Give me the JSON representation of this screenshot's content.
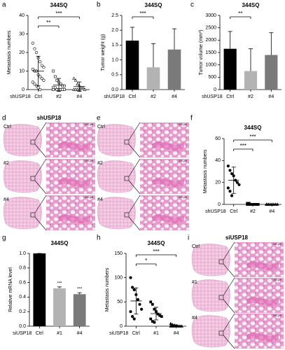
{
  "chart_data": [
    {
      "type": "dotplot",
      "panel": "a",
      "title": "344SQ",
      "ylabel": "Metastasis numbers",
      "xlabel": "shUSP18",
      "categories": [
        "Ctrl",
        "#2",
        "#4"
      ],
      "points": [
        [
          25,
          22,
          20,
          17,
          15,
          13,
          12,
          11,
          10,
          10,
          8,
          7,
          6,
          5,
          4,
          3,
          2,
          1,
          0
        ],
        [
          10,
          7,
          5,
          4,
          3,
          2,
          2,
          1,
          1,
          0,
          0,
          0,
          0,
          0,
          0
        ],
        [
          6,
          5,
          3,
          2,
          1,
          1,
          0,
          0,
          0,
          0,
          0
        ]
      ],
      "means": [
        10,
        2.5,
        1.6
      ],
      "errors": [
        8,
        3.5,
        2.5
      ],
      "markers": [
        "circle",
        "square",
        "triangle"
      ],
      "open_markers": true,
      "color": "#000000",
      "ylim": [
        0,
        40
      ],
      "yticks": [
        0,
        10,
        20,
        30,
        40
      ],
      "brackets": [
        {
          "pair": [
            0,
            1
          ],
          "label": "**"
        },
        {
          "pair": [
            0,
            2
          ],
          "label": "***"
        }
      ]
    },
    {
      "type": "bar",
      "panel": "b",
      "title": "344SQ",
      "ylabel": "Tumor weight (g)",
      "xlabel": "shUSP18",
      "categories": [
        "Ctrl",
        "#2",
        "#4"
      ],
      "values": [
        1.65,
        0.75,
        1.35
      ],
      "errors": [
        0.45,
        0.8,
        0.7
      ],
      "colors": [
        "#000000",
        "#b3b3b3",
        "#7a7a7a"
      ],
      "ylim": [
        0,
        2.5
      ],
      "yticks": [
        {
          "value": 0,
          "label": "0.0"
        },
        0.5,
        {
          "value": 1,
          "label": "1.0"
        },
        1.5,
        {
          "value": 2,
          "label": "2.0"
        },
        2.5
      ],
      "brackets": [
        {
          "pair": [
            0,
            1
          ],
          "label": "***"
        }
      ]
    },
    {
      "type": "bar",
      "panel": "c",
      "title": "344SQ",
      "ylabel": "Tumor volume (mm³)",
      "xlabel": "shUSP18",
      "categories": [
        "Ctrl",
        "#2",
        "#4"
      ],
      "values": [
        1650,
        750,
        1400
      ],
      "errors": [
        700,
        900,
        900
      ],
      "colors": [
        "#000000",
        "#b3b3b3",
        "#7a7a7a"
      ],
      "ylim": [
        0,
        3000
      ],
      "yticks": [
        0,
        500,
        1000,
        1500,
        2000,
        2500,
        3000
      ],
      "brackets": [
        {
          "pair": [
            0,
            1
          ],
          "label": "**"
        }
      ]
    },
    {
      "type": "dotplot",
      "panel": "f",
      "title": "344SQ",
      "ylabel": "Metastasis numbers",
      "xlabel": "shUSP18",
      "categories": [
        "Ctrl",
        "#2",
        "#4"
      ],
      "points": [
        [
          35,
          31,
          28,
          26,
          22,
          20,
          18,
          15,
          12,
          8
        ],
        [
          1,
          1,
          0,
          0,
          0,
          0,
          0,
          0,
          0
        ],
        [
          0,
          0,
          0,
          0,
          0,
          0,
          0,
          0,
          0
        ]
      ],
      "means": [
        22,
        0.2,
        0
      ],
      "errors": [
        12,
        0.4,
        0
      ],
      "markers": [
        "circle",
        "square",
        "triangle"
      ],
      "open_markers": false,
      "color": "#000000",
      "ylim": [
        0,
        60
      ],
      "yticks": [
        0,
        20,
        40,
        60
      ],
      "brackets": [
        {
          "pair": [
            0,
            1
          ],
          "label": "***"
        },
        {
          "pair": [
            0,
            2
          ],
          "label": "***"
        }
      ]
    },
    {
      "type": "bar",
      "panel": "g",
      "title": "344SQ",
      "ylabel": "Relative mRNA level",
      "xlabel": "siUSP18",
      "categories": [
        "Ctrl",
        "#1",
        "#4"
      ],
      "values": [
        1.0,
        0.52,
        0.44
      ],
      "errors": [
        0,
        0.02,
        0.02
      ],
      "colors": [
        "#000000",
        "#b3b3b3",
        "#7a7a7a"
      ],
      "ylim": [
        0,
        1.0
      ],
      "yticks": [
        {
          "value": 0,
          "label": "0.0"
        },
        0.2,
        0.4,
        0.6,
        0.8,
        {
          "value": 1,
          "label": "1.0"
        }
      ],
      "value_annotations": [
        null,
        "***",
        "***"
      ]
    },
    {
      "type": "dotplot",
      "panel": "h",
      "title": "344SQ",
      "ylabel": "Metastasis numbers",
      "xlabel": "siUSP18",
      "categories": [
        "Ctrl",
        "#1",
        "#4"
      ],
      "points": [
        [
          100,
          80,
          75,
          65,
          55,
          45,
          35,
          30,
          20,
          15
        ],
        [
          50,
          45,
          35,
          30,
          25,
          22,
          20,
          15,
          10,
          8
        ],
        [
          5,
          3,
          2,
          1,
          0,
          0,
          0,
          0,
          0,
          0
        ]
      ],
      "means": [
        52,
        26,
        1
      ],
      "errors": [
        27,
        13,
        1.7
      ],
      "markers": [
        "circle",
        "square",
        "triangle"
      ],
      "open_markers": false,
      "color": "#000000",
      "ylim": [
        0,
        150
      ],
      "yticks": [
        0,
        50,
        100,
        150
      ],
      "brackets": [
        {
          "pair": [
            0,
            1
          ],
          "label": "*"
        },
        {
          "pair": [
            0,
            2
          ],
          "label": "***"
        }
      ]
    }
  ],
  "figures": [
    {
      "panel": "d",
      "title": "shUSP18",
      "rows": [
        "Ctrl",
        "#2",
        "#4"
      ],
      "scale_bar": "200 μm"
    },
    {
      "panel": "e",
      "rows": [
        "Ctrl",
        "#2",
        "#4"
      ],
      "scale_bar": "200 μm"
    },
    {
      "panel": "i",
      "title": "siUSP18",
      "rows": [
        "Ctrl",
        "#1",
        "#4"
      ],
      "scale_bar": "200 μm"
    }
  ]
}
